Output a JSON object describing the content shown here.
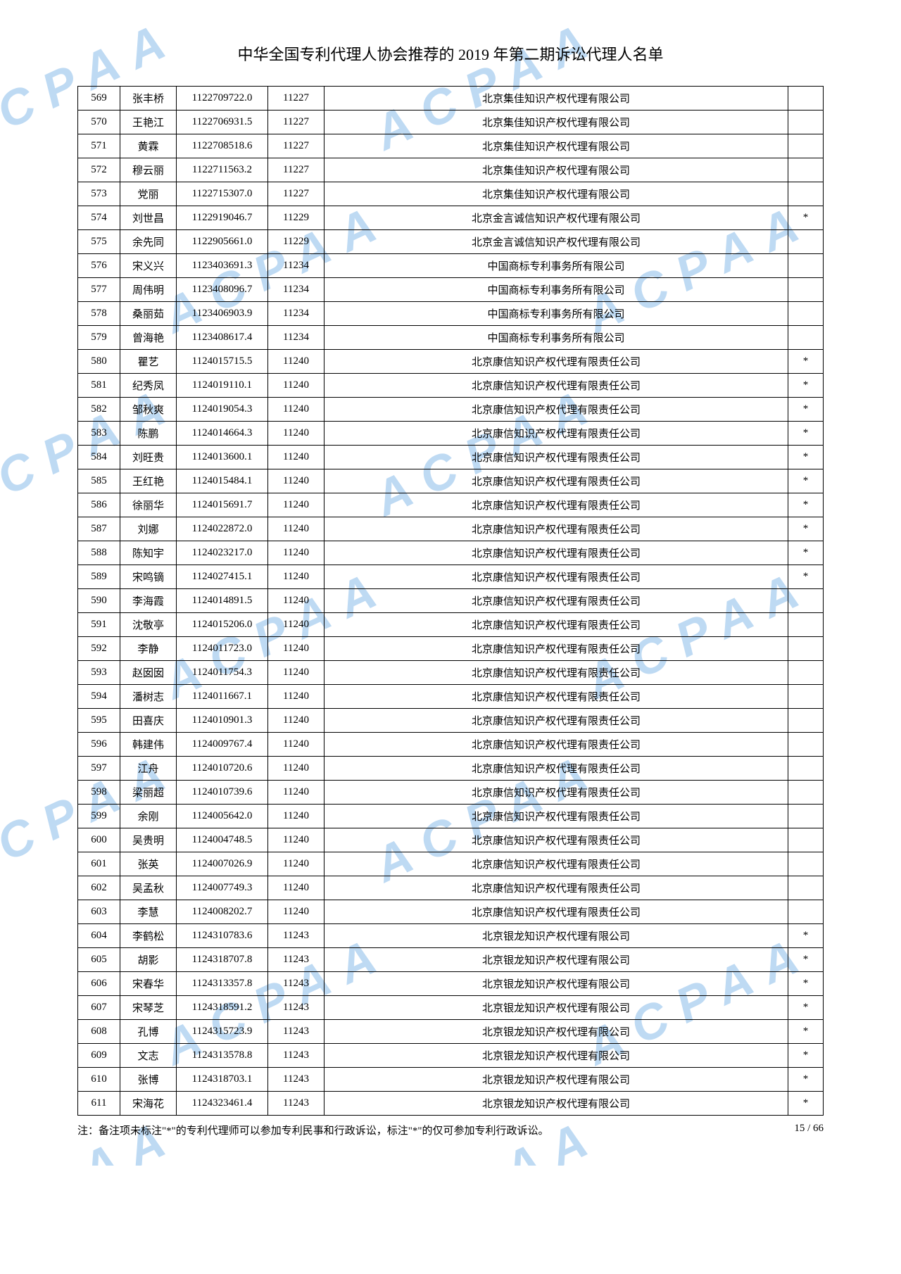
{
  "title": "中华全国专利代理人协会推荐的 2019 年第二期诉讼代理人名单",
  "footnote": "注：备注项未标注\"*\"的专利代理师可以参加专利民事和行政诉讼，标注\"*\"的仅可参加专利行政诉讼。",
  "pageinfo": "15 / 66",
  "watermark": "ACPAA",
  "rows": [
    {
      "idx": "569",
      "name": "张丰桥",
      "regno": "1122709722.0",
      "orgno": "11227",
      "org": "北京集佳知识产权代理有限公司",
      "mark": ""
    },
    {
      "idx": "570",
      "name": "王艳江",
      "regno": "1122706931.5",
      "orgno": "11227",
      "org": "北京集佳知识产权代理有限公司",
      "mark": ""
    },
    {
      "idx": "571",
      "name": "黄霖",
      "regno": "1122708518.6",
      "orgno": "11227",
      "org": "北京集佳知识产权代理有限公司",
      "mark": ""
    },
    {
      "idx": "572",
      "name": "穆云丽",
      "regno": "1122711563.2",
      "orgno": "11227",
      "org": "北京集佳知识产权代理有限公司",
      "mark": ""
    },
    {
      "idx": "573",
      "name": "党丽",
      "regno": "1122715307.0",
      "orgno": "11227",
      "org": "北京集佳知识产权代理有限公司",
      "mark": ""
    },
    {
      "idx": "574",
      "name": "刘世昌",
      "regno": "1122919046.7",
      "orgno": "11229",
      "org": "北京金言诚信知识产权代理有限公司",
      "mark": "*"
    },
    {
      "idx": "575",
      "name": "余先同",
      "regno": "1122905661.0",
      "orgno": "11229",
      "org": "北京金言诚信知识产权代理有限公司",
      "mark": ""
    },
    {
      "idx": "576",
      "name": "宋义兴",
      "regno": "1123403691.3",
      "orgno": "11234",
      "org": "中国商标专利事务所有限公司",
      "mark": ""
    },
    {
      "idx": "577",
      "name": "周伟明",
      "regno": "1123408096.7",
      "orgno": "11234",
      "org": "中国商标专利事务所有限公司",
      "mark": ""
    },
    {
      "idx": "578",
      "name": "桑丽茹",
      "regno": "1123406903.9",
      "orgno": "11234",
      "org": "中国商标专利事务所有限公司",
      "mark": ""
    },
    {
      "idx": "579",
      "name": "曾海艳",
      "regno": "1123408617.4",
      "orgno": "11234",
      "org": "中国商标专利事务所有限公司",
      "mark": ""
    },
    {
      "idx": "580",
      "name": "瞿艺",
      "regno": "1124015715.5",
      "orgno": "11240",
      "org": "北京康信知识产权代理有限责任公司",
      "mark": "*"
    },
    {
      "idx": "581",
      "name": "纪秀凤",
      "regno": "1124019110.1",
      "orgno": "11240",
      "org": "北京康信知识产权代理有限责任公司",
      "mark": "*"
    },
    {
      "idx": "582",
      "name": "邹秋爽",
      "regno": "1124019054.3",
      "orgno": "11240",
      "org": "北京康信知识产权代理有限责任公司",
      "mark": "*"
    },
    {
      "idx": "583",
      "name": "陈鹏",
      "regno": "1124014664.3",
      "orgno": "11240",
      "org": "北京康信知识产权代理有限责任公司",
      "mark": "*"
    },
    {
      "idx": "584",
      "name": "刘旺贵",
      "regno": "1124013600.1",
      "orgno": "11240",
      "org": "北京康信知识产权代理有限责任公司",
      "mark": "*"
    },
    {
      "idx": "585",
      "name": "王红艳",
      "regno": "1124015484.1",
      "orgno": "11240",
      "org": "北京康信知识产权代理有限责任公司",
      "mark": "*"
    },
    {
      "idx": "586",
      "name": "徐丽华",
      "regno": "1124015691.7",
      "orgno": "11240",
      "org": "北京康信知识产权代理有限责任公司",
      "mark": "*"
    },
    {
      "idx": "587",
      "name": "刘娜",
      "regno": "1124022872.0",
      "orgno": "11240",
      "org": "北京康信知识产权代理有限责任公司",
      "mark": "*"
    },
    {
      "idx": "588",
      "name": "陈知宇",
      "regno": "1124023217.0",
      "orgno": "11240",
      "org": "北京康信知识产权代理有限责任公司",
      "mark": "*"
    },
    {
      "idx": "589",
      "name": "宋鸣镝",
      "regno": "1124027415.1",
      "orgno": "11240",
      "org": "北京康信知识产权代理有限责任公司",
      "mark": "*"
    },
    {
      "idx": "590",
      "name": "李海霞",
      "regno": "1124014891.5",
      "orgno": "11240",
      "org": "北京康信知识产权代理有限责任公司",
      "mark": ""
    },
    {
      "idx": "591",
      "name": "沈敬亭",
      "regno": "1124015206.0",
      "orgno": "11240",
      "org": "北京康信知识产权代理有限责任公司",
      "mark": ""
    },
    {
      "idx": "592",
      "name": "李静",
      "regno": "1124011723.0",
      "orgno": "11240",
      "org": "北京康信知识产权代理有限责任公司",
      "mark": ""
    },
    {
      "idx": "593",
      "name": "赵囡囡",
      "regno": "1124011754.3",
      "orgno": "11240",
      "org": "北京康信知识产权代理有限责任公司",
      "mark": ""
    },
    {
      "idx": "594",
      "name": "潘树志",
      "regno": "1124011667.1",
      "orgno": "11240",
      "org": "北京康信知识产权代理有限责任公司",
      "mark": ""
    },
    {
      "idx": "595",
      "name": "田喜庆",
      "regno": "1124010901.3",
      "orgno": "11240",
      "org": "北京康信知识产权代理有限责任公司",
      "mark": ""
    },
    {
      "idx": "596",
      "name": "韩建伟",
      "regno": "1124009767.4",
      "orgno": "11240",
      "org": "北京康信知识产权代理有限责任公司",
      "mark": ""
    },
    {
      "idx": "597",
      "name": "江舟",
      "regno": "1124010720.6",
      "orgno": "11240",
      "org": "北京康信知识产权代理有限责任公司",
      "mark": ""
    },
    {
      "idx": "598",
      "name": "梁丽超",
      "regno": "1124010739.6",
      "orgno": "11240",
      "org": "北京康信知识产权代理有限责任公司",
      "mark": ""
    },
    {
      "idx": "599",
      "name": "余刚",
      "regno": "1124005642.0",
      "orgno": "11240",
      "org": "北京康信知识产权代理有限责任公司",
      "mark": ""
    },
    {
      "idx": "600",
      "name": "吴贵明",
      "regno": "1124004748.5",
      "orgno": "11240",
      "org": "北京康信知识产权代理有限责任公司",
      "mark": ""
    },
    {
      "idx": "601",
      "name": "张英",
      "regno": "1124007026.9",
      "orgno": "11240",
      "org": "北京康信知识产权代理有限责任公司",
      "mark": ""
    },
    {
      "idx": "602",
      "name": "吴孟秋",
      "regno": "1124007749.3",
      "orgno": "11240",
      "org": "北京康信知识产权代理有限责任公司",
      "mark": ""
    },
    {
      "idx": "603",
      "name": "李慧",
      "regno": "1124008202.7",
      "orgno": "11240",
      "org": "北京康信知识产权代理有限责任公司",
      "mark": ""
    },
    {
      "idx": "604",
      "name": "李鹤松",
      "regno": "1124310783.6",
      "orgno": "11243",
      "org": "北京银龙知识产权代理有限公司",
      "mark": "*"
    },
    {
      "idx": "605",
      "name": "胡影",
      "regno": "1124318707.8",
      "orgno": "11243",
      "org": "北京银龙知识产权代理有限公司",
      "mark": "*"
    },
    {
      "idx": "606",
      "name": "宋春华",
      "regno": "1124313357.8",
      "orgno": "11243",
      "org": "北京银龙知识产权代理有限公司",
      "mark": "*"
    },
    {
      "idx": "607",
      "name": "宋琴芝",
      "regno": "1124318591.2",
      "orgno": "11243",
      "org": "北京银龙知识产权代理有限公司",
      "mark": "*"
    },
    {
      "idx": "608",
      "name": "孔博",
      "regno": "1124315723.9",
      "orgno": "11243",
      "org": "北京银龙知识产权代理有限公司",
      "mark": "*"
    },
    {
      "idx": "609",
      "name": "文志",
      "regno": "1124313578.8",
      "orgno": "11243",
      "org": "北京银龙知识产权代理有限公司",
      "mark": "*"
    },
    {
      "idx": "610",
      "name": "张博",
      "regno": "1124318703.1",
      "orgno": "11243",
      "org": "北京银龙知识产权代理有限公司",
      "mark": "*"
    },
    {
      "idx": "611",
      "name": "宋海花",
      "regno": "1124323461.4",
      "orgno": "11243",
      "org": "北京银龙知识产权代理有限公司",
      "mark": "*"
    }
  ]
}
